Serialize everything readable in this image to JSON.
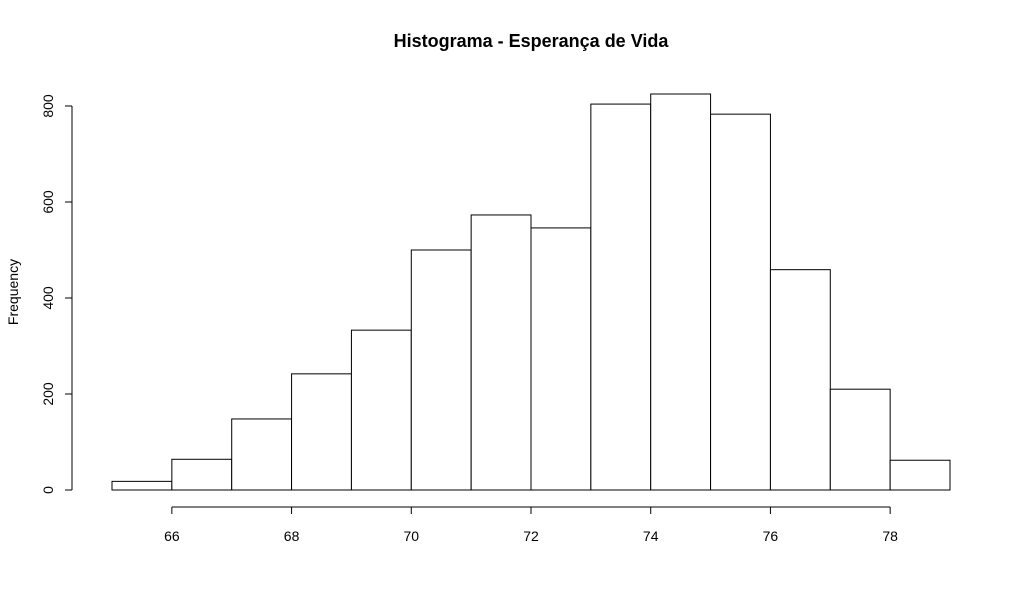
{
  "chart_data": {
    "type": "bar",
    "title": "Histograma - Esperança de Vida",
    "xlabel": "",
    "ylabel": "Frequency",
    "bin_edges": [
      65,
      66,
      67,
      68,
      69,
      70,
      71,
      72,
      73,
      74,
      75,
      76,
      77,
      78,
      79
    ],
    "values": [
      18,
      64,
      148,
      242,
      333,
      500,
      573,
      546,
      804,
      825,
      783,
      459,
      210,
      62
    ],
    "x_ticks": [
      66,
      68,
      70,
      72,
      74,
      76,
      78
    ],
    "y_ticks": [
      0,
      200,
      400,
      600,
      800
    ],
    "xlim": [
      65,
      79
    ],
    "ylim": [
      0,
      825
    ],
    "grid": false,
    "legend": "none",
    "bar_fill": "#ffffff",
    "bar_stroke": "#000000"
  }
}
